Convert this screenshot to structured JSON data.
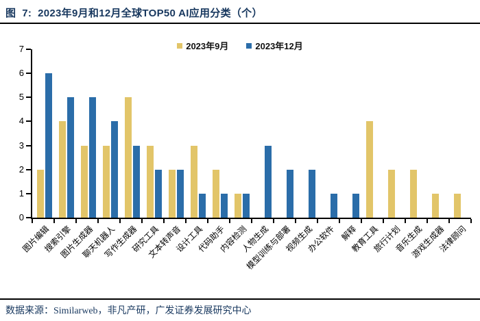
{
  "header": {
    "title": "图  7:  2023年9月和12月全球TOP50 AI应用分类（个）"
  },
  "footer": {
    "source": "数据来源：Similarweb，非凡产研，广发证券发展研究中心"
  },
  "colors": {
    "title_navy": "#17375E",
    "series_september": "#E2C569",
    "series_december": "#2B6DA9",
    "axis": "#000000"
  },
  "chart_data": {
    "type": "bar",
    "title": "2023年9月和12月全球TOP50 AI应用分类（个）",
    "categories": [
      "图片编辑",
      "搜索引擎",
      "图片生成器",
      "聊天机器人",
      "写作生成器",
      "研究工具",
      "文本转声音",
      "设计工具",
      "代码助手",
      "内容检测",
      "人物生成",
      "模型训练与部署",
      "视频生成",
      "办公软件",
      "解释",
      "教育工具",
      "旅行计划",
      "音乐生成",
      "游戏生成器",
      "法律顾问"
    ],
    "series": [
      {
        "name": "2023年9月",
        "color": "#E2C569",
        "values": [
          2,
          4,
          3,
          3,
          5,
          3,
          2,
          3,
          2,
          1,
          0,
          0,
          0,
          0,
          0,
          4,
          2,
          2,
          1,
          1
        ]
      },
      {
        "name": "2023年12月",
        "color": "#2B6DA9",
        "values": [
          6,
          5,
          5,
          4,
          3,
          2,
          2,
          1,
          1,
          1,
          3,
          2,
          2,
          1,
          1,
          0,
          0,
          0,
          0,
          0
        ]
      }
    ],
    "xlabel": "",
    "ylabel": "",
    "ylim": [
      0,
      7
    ],
    "yticks": [
      "0",
      "1",
      "2",
      "3",
      "4",
      "5",
      "6",
      "7"
    ],
    "grid": false,
    "legend_position": "top-center"
  }
}
